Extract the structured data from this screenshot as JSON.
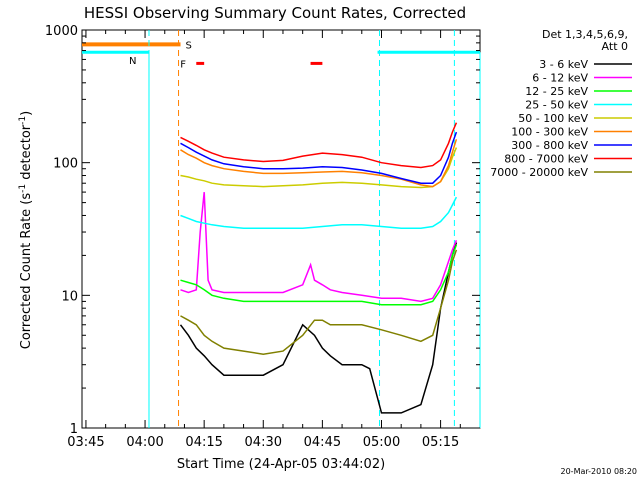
{
  "chart_data": {
    "type": "line",
    "title": "HESSI Observing Summary Count Rates, Corrected",
    "xlabel": "Start Time (24-Apr-05 03:44:02)",
    "ylabel": "Corrected Count Rate (s",
    "ylabel_sup": "-1",
    "ylabel_mid": " detector",
    "ylabel_tail": ")",
    "x_ticks": [
      "03:45",
      "04:00",
      "04:15",
      "04:30",
      "04:45",
      "05:00",
      "05:15"
    ],
    "x_tick_minutes": [
      0,
      15,
      30,
      45,
      60,
      75,
      90
    ],
    "xlim_minutes": [
      -1,
      100
    ],
    "y_ticks": [
      "1",
      "10",
      "100",
      "1000"
    ],
    "ylim": [
      1,
      1000
    ],
    "y_log": true,
    "legend_header": [
      "Det 1,3,4,5,6,9,",
      "Att 0"
    ],
    "series": [
      {
        "name": "3 - 6 keV",
        "color": "#000000",
        "x": [
          24,
          26,
          28,
          30,
          32,
          35,
          40,
          45,
          50,
          55,
          58,
          60,
          62,
          65,
          70,
          72,
          75,
          77,
          80,
          85,
          88,
          90,
          92,
          93,
          94
        ],
        "y": [
          6,
          5,
          4,
          3.5,
          3,
          2.5,
          2.5,
          2.5,
          3,
          6,
          5,
          4,
          3.5,
          3,
          3,
          2.8,
          1.3,
          1.3,
          1.3,
          1.5,
          3,
          8,
          15,
          20,
          25
        ]
      },
      {
        "name": "6 - 12 keV",
        "color": "#ff00ff",
        "x": [
          24,
          26,
          28,
          29,
          30,
          31,
          32,
          35,
          40,
          45,
          50,
          55,
          57,
          58,
          60,
          62,
          65,
          70,
          75,
          80,
          85,
          88,
          90,
          92,
          93,
          94
        ],
        "y": [
          11,
          10.5,
          11,
          30,
          60,
          13,
          11,
          10.5,
          10.5,
          10.5,
          10.5,
          12,
          17,
          13,
          12,
          11,
          10.5,
          10,
          9.5,
          9.5,
          9,
          9.5,
          12,
          18,
          22,
          26
        ]
      },
      {
        "name": "12 - 25 keV",
        "color": "#00ff00",
        "x": [
          24,
          26,
          28,
          30,
          32,
          35,
          40,
          45,
          50,
          55,
          60,
          65,
          70,
          75,
          80,
          85,
          88,
          90,
          92,
          93,
          94
        ],
        "y": [
          13,
          12.5,
          12,
          11,
          10,
          9.5,
          9,
          9,
          9,
          9,
          9,
          9,
          9,
          8.5,
          8.5,
          8.5,
          9,
          11,
          15,
          20,
          24
        ]
      },
      {
        "name": "25 - 50 keV",
        "color": "#00ffff",
        "x": [
          24,
          26,
          28,
          30,
          32,
          35,
          40,
          45,
          50,
          55,
          60,
          65,
          70,
          75,
          80,
          85,
          88,
          90,
          92,
          93,
          94
        ],
        "y": [
          40,
          38,
          36,
          35,
          34,
          33,
          32,
          32,
          32,
          32,
          33,
          34,
          34,
          33,
          32,
          32,
          33,
          36,
          42,
          48,
          55
        ]
      },
      {
        "name": "50 - 100 keV",
        "color": "#cccc00",
        "x": [
          24,
          26,
          28,
          30,
          32,
          35,
          40,
          45,
          50,
          55,
          60,
          65,
          70,
          75,
          80,
          85,
          88,
          90,
          92,
          93,
          94
        ],
        "y": [
          80,
          78,
          75,
          73,
          70,
          68,
          67,
          66,
          67,
          68,
          70,
          71,
          70,
          68,
          66,
          65,
          66,
          72,
          90,
          110,
          130
        ]
      },
      {
        "name": "100 - 300 keV",
        "color": "#ff8000",
        "x": [
          24,
          26,
          28,
          30,
          32,
          35,
          40,
          45,
          50,
          55,
          60,
          65,
          70,
          75,
          80,
          85,
          88,
          90,
          92,
          93,
          94
        ],
        "y": [
          125,
          115,
          108,
          100,
          95,
          90,
          86,
          83,
          83,
          84,
          85,
          86,
          84,
          80,
          75,
          68,
          66,
          72,
          95,
          120,
          150
        ]
      },
      {
        "name": "300 - 800 keV",
        "color": "#0000ff",
        "x": [
          24,
          26,
          28,
          30,
          32,
          35,
          40,
          45,
          50,
          55,
          60,
          65,
          70,
          75,
          80,
          85,
          88,
          90,
          92,
          93,
          94
        ],
        "y": [
          140,
          130,
          120,
          112,
          105,
          98,
          93,
          90,
          90,
          91,
          93,
          92,
          88,
          83,
          76,
          70,
          70,
          80,
          110,
          140,
          170
        ]
      },
      {
        "name": "800 - 7000 keV",
        "color": "#ff0000",
        "x": [
          24,
          26,
          28,
          30,
          32,
          35,
          40,
          45,
          50,
          55,
          60,
          65,
          70,
          75,
          80,
          85,
          88,
          90,
          92,
          93,
          94
        ],
        "y": [
          155,
          145,
          135,
          125,
          118,
          110,
          105,
          102,
          104,
          112,
          118,
          115,
          110,
          100,
          95,
          92,
          95,
          105,
          140,
          170,
          200
        ]
      },
      {
        "name": "7000 - 20000 keV",
        "color": "#808000",
        "x": [
          24,
          26,
          28,
          30,
          32,
          35,
          40,
          45,
          50,
          55,
          58,
          60,
          62,
          65,
          70,
          75,
          80,
          85,
          88,
          90,
          92,
          93,
          94
        ],
        "y": [
          7,
          6.5,
          6,
          5,
          4.5,
          4,
          3.8,
          3.6,
          3.8,
          5,
          6.5,
          6.5,
          6,
          6,
          6,
          5.5,
          5,
          4.5,
          5,
          8,
          13,
          18,
          22
        ]
      }
    ],
    "saa_flag": {
      "label": "S",
      "color": "#ff8000",
      "x_start": -1,
      "x_end": 24,
      "y": 780
    },
    "night_flag": {
      "label": "N",
      "color": "#00ffff",
      "segments": [
        [
          -1,
          16
        ],
        [
          74,
          100
        ]
      ],
      "y": 680
    },
    "flare_flag": {
      "label": "F",
      "color": "#ff0000",
      "segments": [
        [
          28,
          30
        ],
        [
          57,
          60
        ]
      ],
      "y": 560
    },
    "vlines": [
      {
        "x": 16,
        "color": "#00ffff"
      },
      {
        "x": 23.5,
        "color": "#ff8000"
      },
      {
        "x": 74.5,
        "color": "#00ffff"
      },
      {
        "x": 93.5,
        "color": "#00ffff"
      }
    ],
    "footer": "20-Mar-2010 08:20"
  }
}
